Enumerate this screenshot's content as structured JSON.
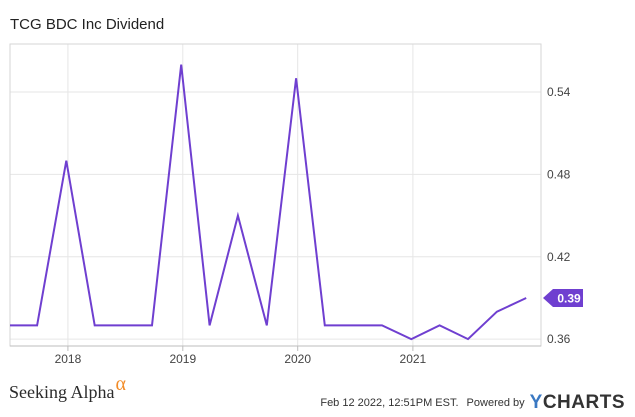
{
  "chart_data": {
    "type": "line",
    "title": "TCG BDC Inc Dividend",
    "series": [
      {
        "values": [
          {
            "x": "2017-07-01",
            "y": 0.37
          },
          {
            "x": "2017-09-25",
            "y": 0.37
          },
          {
            "x": "2017-12-27",
            "y": 0.49
          },
          {
            "x": "2018-03-27",
            "y": 0.37
          },
          {
            "x": "2018-06-25",
            "y": 0.37
          },
          {
            "x": "2018-09-25",
            "y": 0.37
          },
          {
            "x": "2018-12-27",
            "y": 0.56
          },
          {
            "x": "2019-03-27",
            "y": 0.37
          },
          {
            "x": "2019-06-25",
            "y": 0.45
          },
          {
            "x": "2019-09-25",
            "y": 0.37
          },
          {
            "x": "2019-12-27",
            "y": 0.55
          },
          {
            "x": "2020-03-27",
            "y": 0.37
          },
          {
            "x": "2020-06-25",
            "y": 0.37
          },
          {
            "x": "2020-09-25",
            "y": 0.37
          },
          {
            "x": "2020-12-27",
            "y": 0.36
          },
          {
            "x": "2021-03-27",
            "y": 0.37
          },
          {
            "x": "2021-06-25",
            "y": 0.36
          },
          {
            "x": "2021-09-25",
            "y": 0.38
          },
          {
            "x": "2021-12-27",
            "y": 0.39
          }
        ]
      }
    ],
    "x_ticks": [
      "2018",
      "2019",
      "2020",
      "2021"
    ],
    "y_ticks": [
      0.36,
      0.42,
      0.48,
      0.54
    ],
    "y_tick_labels": [
      "0.36",
      "0.42",
      "0.48",
      "0.54"
    ],
    "ylim": [
      0.355,
      0.575
    ],
    "xlim": [
      "2017-07-01",
      "2022-02-12"
    ],
    "last_value_label": "0.39",
    "line_color": "#6f3fd0",
    "grid": true,
    "y_axis_position": "right"
  },
  "footer": {
    "brand": "Seeking Alpha",
    "brand_symbol": "α",
    "timestamp": "Feb 12 2022, 12:51PM EST.",
    "powered_by": "Powered by",
    "provider": "YCHARTS",
    "provider_initial": "Y",
    "provider_rest": "CHARTS"
  }
}
